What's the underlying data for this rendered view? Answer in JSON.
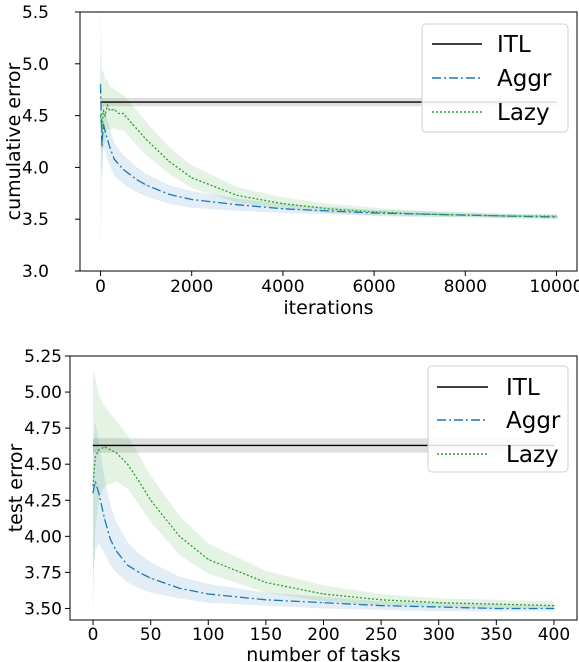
{
  "chart_data": [
    {
      "type": "line",
      "xlabel": "iterations",
      "ylabel": "cumulative error",
      "xlim": [
        -450,
        10450
      ],
      "ylim": [
        3.0,
        5.5
      ],
      "xticks": [
        0,
        2000,
        4000,
        6000,
        8000,
        10000
      ],
      "xtick_labels": [
        "0",
        "2000",
        "4000",
        "6000",
        "8000",
        "10000"
      ],
      "yticks": [
        3.0,
        3.5,
        4.0,
        4.5,
        5.0,
        5.5
      ],
      "ytick_labels": [
        "3.0",
        "3.5",
        "4.0",
        "4.5",
        "5.0",
        "5.5"
      ],
      "grid": false,
      "legend_position": "top-right",
      "series": [
        {
          "name": "ITL",
          "color": "#000000",
          "style": "solid",
          "x": [
            0,
            10000
          ],
          "y": [
            4.63,
            4.63
          ],
          "band_lower": [
            4.59,
            4.59
          ],
          "band_upper": [
            4.67,
            4.67
          ]
        },
        {
          "name": "Aggr",
          "color": "#1f77b4",
          "style": "dashdot",
          "x": [
            0,
            30,
            60,
            100,
            200,
            300,
            500,
            800,
            1000,
            1500,
            2000,
            3000,
            4000,
            5000,
            6000,
            7000,
            8000,
            9000,
            10000
          ],
          "y": [
            4.8,
            4.2,
            4.42,
            4.35,
            4.2,
            4.08,
            3.98,
            3.88,
            3.83,
            3.74,
            3.69,
            3.64,
            3.6,
            3.58,
            3.56,
            3.55,
            3.54,
            3.53,
            3.52
          ],
          "band_lower": [
            4.4,
            3.9,
            4.2,
            4.15,
            4.02,
            3.92,
            3.84,
            3.76,
            3.72,
            3.65,
            3.61,
            3.58,
            3.56,
            3.55,
            3.53,
            3.52,
            3.52,
            3.51,
            3.5
          ],
          "band_upper": [
            5.2,
            4.5,
            4.62,
            4.55,
            4.38,
            4.24,
            4.12,
            4.0,
            3.94,
            3.83,
            3.77,
            3.7,
            3.65,
            3.62,
            3.59,
            3.58,
            3.56,
            3.55,
            3.54
          ]
        },
        {
          "name": "Lazy",
          "color": "#2ca02c",
          "style": "dotted",
          "x": [
            0,
            30,
            60,
            100,
            150,
            200,
            300,
            400,
            500,
            700,
            1000,
            1500,
            2000,
            3000,
            4000,
            5000,
            6000,
            7000,
            8000,
            9000,
            10000
          ],
          "y": [
            4.5,
            4.35,
            4.55,
            4.5,
            4.6,
            4.55,
            4.56,
            4.52,
            4.52,
            4.42,
            4.27,
            4.06,
            3.9,
            3.73,
            3.65,
            3.6,
            3.57,
            3.55,
            3.54,
            3.53,
            3.53
          ],
          "band_lower": [
            3.2,
            3.9,
            4.2,
            4.25,
            4.38,
            4.36,
            4.38,
            4.36,
            4.36,
            4.26,
            4.12,
            3.94,
            3.8,
            3.66,
            3.6,
            3.56,
            3.54,
            3.53,
            3.52,
            3.51,
            3.51
          ],
          "band_upper": [
            5.5,
            4.9,
            4.95,
            4.85,
            4.85,
            4.78,
            4.76,
            4.72,
            4.7,
            4.6,
            4.44,
            4.2,
            4.02,
            3.81,
            3.71,
            3.65,
            3.61,
            3.58,
            3.57,
            3.55,
            3.55
          ]
        }
      ]
    },
    {
      "type": "line",
      "xlabel": "number of tasks",
      "ylabel": "test error",
      "xlim": [
        -20,
        420
      ],
      "ylim": [
        3.42,
        5.25
      ],
      "xticks": [
        0,
        50,
        100,
        150,
        200,
        250,
        300,
        350,
        400
      ],
      "xtick_labels": [
        "0",
        "50",
        "100",
        "150",
        "200",
        "250",
        "300",
        "350",
        "400"
      ],
      "yticks": [
        3.5,
        3.75,
        4.0,
        4.25,
        4.5,
        4.75,
        5.0,
        5.25
      ],
      "ytick_labels": [
        "3.50",
        "3.75",
        "4.00",
        "4.25",
        "4.50",
        "4.75",
        "5.00",
        "5.25"
      ],
      "grid": false,
      "legend_position": "top-right",
      "series": [
        {
          "name": "ITL",
          "color": "#000000",
          "style": "solid",
          "x": [
            0,
            400
          ],
          "y": [
            4.63,
            4.63
          ],
          "band_lower": [
            4.58,
            4.58
          ],
          "band_upper": [
            4.68,
            4.68
          ]
        },
        {
          "name": "Aggr",
          "color": "#1f77b4",
          "style": "dashdot",
          "x": [
            0,
            2,
            5,
            10,
            15,
            20,
            30,
            40,
            50,
            75,
            100,
            150,
            200,
            250,
            300,
            350,
            400
          ],
          "y": [
            4.3,
            4.38,
            4.3,
            4.12,
            3.98,
            3.9,
            3.8,
            3.75,
            3.71,
            3.64,
            3.6,
            3.56,
            3.54,
            3.52,
            3.51,
            3.5,
            3.5
          ],
          "band_lower": [
            3.75,
            3.9,
            3.95,
            3.88,
            3.8,
            3.75,
            3.68,
            3.64,
            3.61,
            3.57,
            3.54,
            3.52,
            3.5,
            3.49,
            3.48,
            3.48,
            3.48
          ],
          "band_upper": [
            4.6,
            4.8,
            4.65,
            4.4,
            4.22,
            4.1,
            3.96,
            3.88,
            3.82,
            3.72,
            3.67,
            3.61,
            3.58,
            3.55,
            3.54,
            3.53,
            3.52
          ]
        },
        {
          "name": "Lazy",
          "color": "#2ca02c",
          "style": "dotted",
          "x": [
            0,
            2,
            5,
            10,
            20,
            30,
            40,
            50,
            75,
            100,
            150,
            200,
            250,
            300,
            350,
            400
          ],
          "y": [
            4.35,
            4.55,
            4.6,
            4.62,
            4.58,
            4.5,
            4.38,
            4.25,
            4.0,
            3.84,
            3.68,
            3.6,
            3.56,
            3.54,
            3.53,
            3.52
          ],
          "band_lower": [
            3.45,
            4.05,
            4.25,
            4.35,
            4.38,
            4.33,
            4.22,
            4.1,
            3.87,
            3.74,
            3.61,
            3.55,
            3.52,
            3.51,
            3.5,
            3.5
          ],
          "band_upper": [
            5.15,
            5.1,
            4.98,
            4.9,
            4.8,
            4.7,
            4.56,
            4.42,
            4.14,
            3.95,
            3.76,
            3.66,
            3.6,
            3.57,
            3.56,
            3.55
          ]
        }
      ]
    }
  ]
}
